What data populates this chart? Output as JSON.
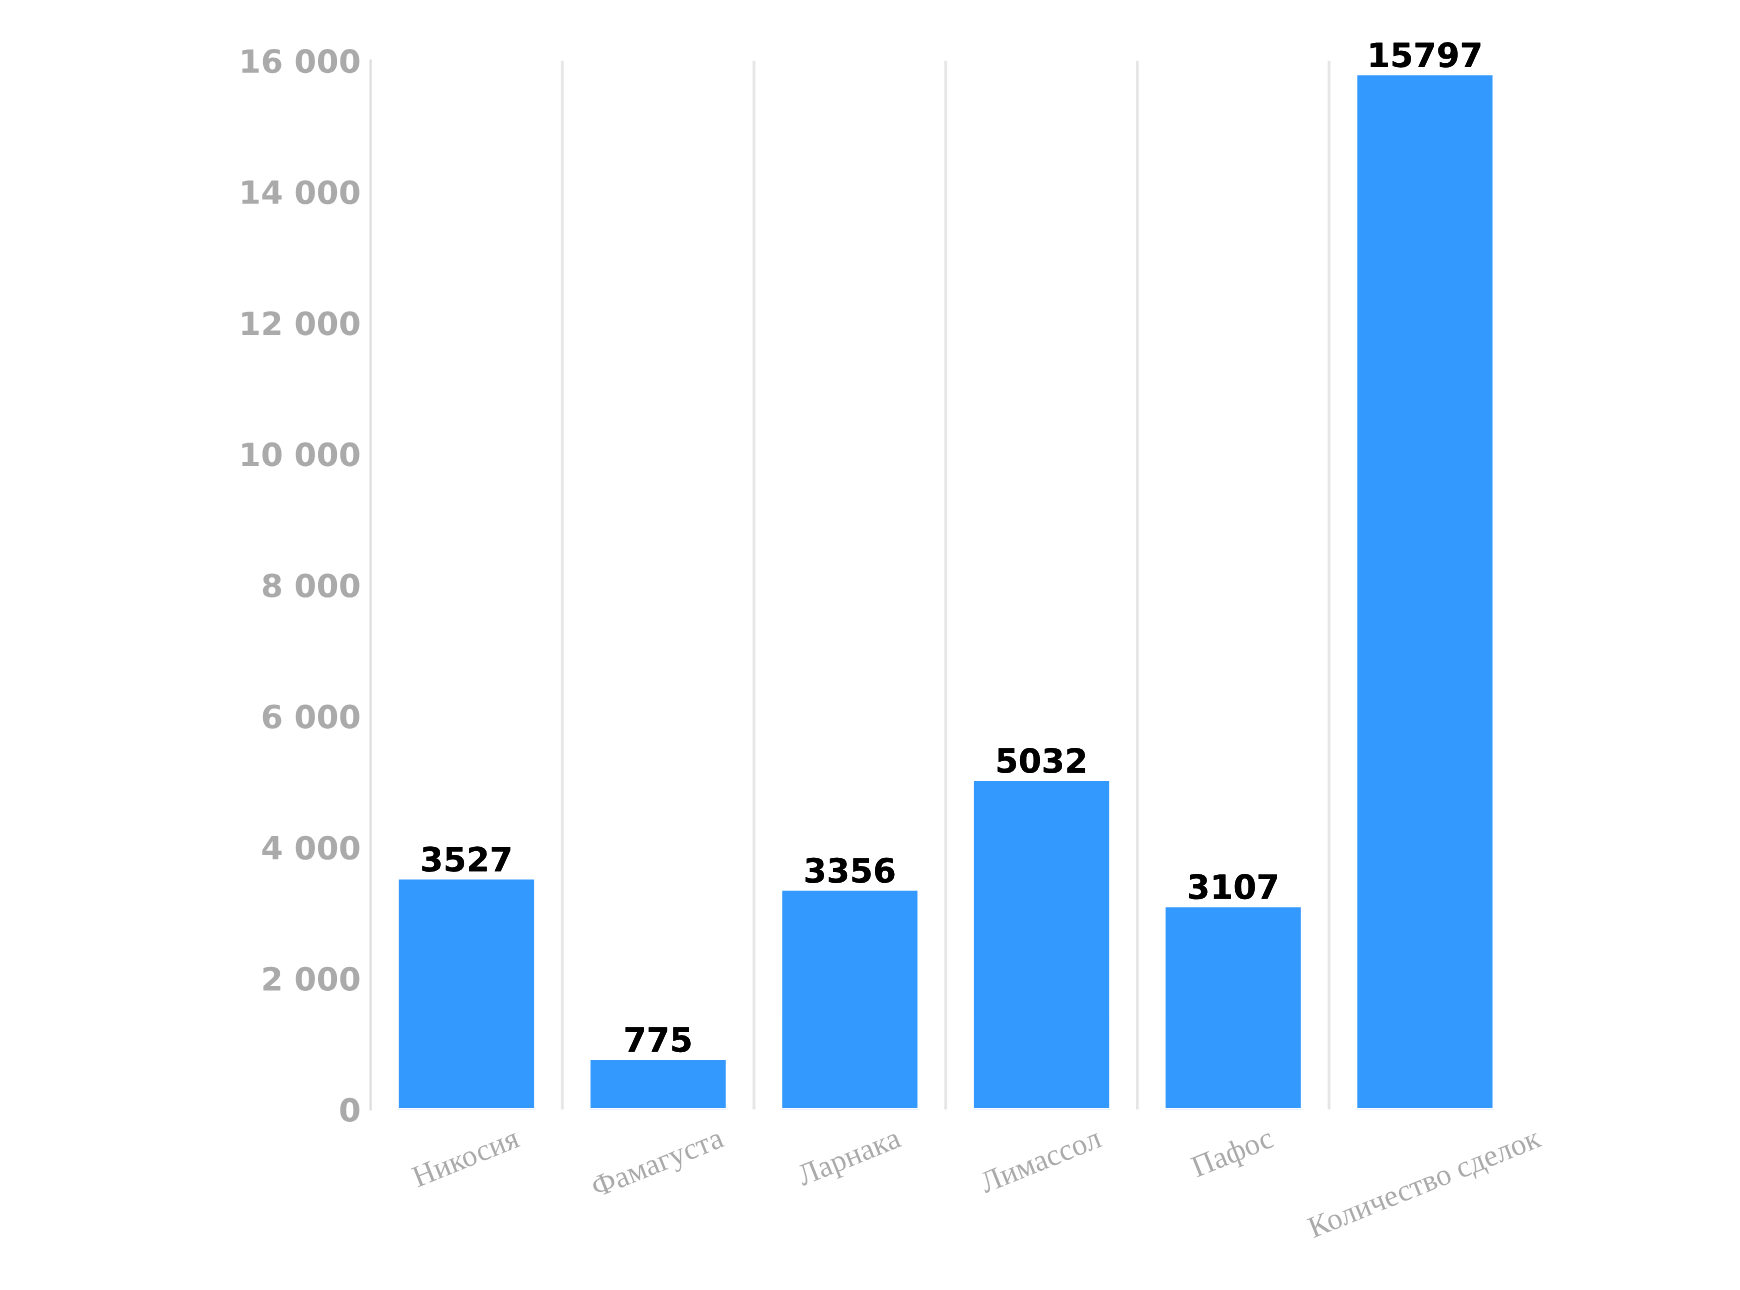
{
  "chart_data": {
    "type": "bar",
    "categories": [
      "Никосия",
      "Фамагуста",
      "Ларнака",
      "Лимассол",
      "Пафос",
      "Количество сделок"
    ],
    "values": [
      3527,
      775,
      3356,
      5032,
      3107,
      15797
    ],
    "color": "#3399ff",
    "ylim": [
      0,
      16000
    ],
    "yticks": [
      {
        "value": 0,
        "label": "0"
      },
      {
        "value": 2000,
        "label": "2 000"
      },
      {
        "value": 4000,
        "label": "4 000"
      },
      {
        "value": 6000,
        "label": "6 000"
      },
      {
        "value": 8000,
        "label": "8 000"
      },
      {
        "value": 10000,
        "label": "10 000"
      },
      {
        "value": 12000,
        "label": "12 000"
      },
      {
        "value": 14000,
        "label": "14 000"
      },
      {
        "value": 16000,
        "label": "16 000"
      }
    ],
    "grid": "x",
    "data_labels": true
  }
}
